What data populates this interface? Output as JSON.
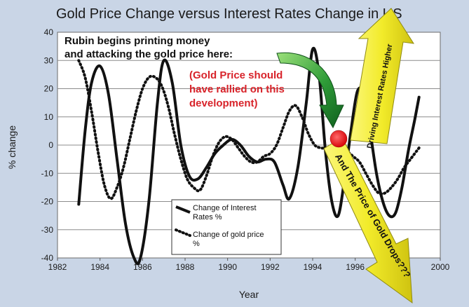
{
  "chart_data": {
    "type": "line",
    "title": "Gold Price Change versus Interest Rates Change in US",
    "xlabel": "Year",
    "ylabel": "% change",
    "xlim": [
      1982,
      2000
    ],
    "ylim": [
      -40,
      40
    ],
    "x_ticks": [
      1982,
      1984,
      1986,
      1988,
      1990,
      1992,
      1994,
      1996,
      1998,
      2000
    ],
    "y_ticks": [
      -40,
      -30,
      -20,
      -10,
      0,
      10,
      20,
      30,
      40
    ],
    "grid": "horizontal",
    "series": [
      {
        "name": "Change of Interest Rates %",
        "style": "solid",
        "color": "#000000",
        "x": [
          1983.0,
          1983.3,
          1983.6,
          1984.0,
          1984.4,
          1984.8,
          1985.2,
          1985.6,
          1985.9,
          1986.3,
          1986.7,
          1987.0,
          1987.4,
          1987.8,
          1988.2,
          1988.6,
          1989.0,
          1989.4,
          1989.8,
          1990.2,
          1990.6,
          1991.0,
          1991.4,
          1991.8,
          1992.2,
          1992.6,
          1992.9,
          1993.3,
          1993.7,
          1994.0,
          1994.3,
          1994.6,
          1994.9,
          1995.2,
          1995.5,
          1995.8,
          1996.1,
          1996.4,
          1996.7,
          1997.0,
          1997.3,
          1997.6,
          1997.9,
          1998.2,
          1998.5,
          1998.8,
          1999.0
        ],
        "values": [
          -21,
          5,
          22,
          28,
          18,
          -5,
          -28,
          -40,
          -40,
          -20,
          15,
          30,
          22,
          0,
          -11,
          -12,
          -8,
          -3,
          0,
          2,
          0,
          -4,
          -6,
          -5,
          -6,
          -14,
          -19,
          -8,
          15,
          34,
          25,
          -2,
          -20,
          -25,
          -12,
          5,
          19,
          18,
          5,
          -10,
          -20,
          -25,
          -24,
          -15,
          -2,
          9,
          17
        ]
      },
      {
        "name": "Change of gold price %",
        "style": "dotted",
        "color": "#000000",
        "x": [
          1983.0,
          1983.3,
          1983.6,
          1983.9,
          1984.2,
          1984.5,
          1984.8,
          1985.1,
          1985.4,
          1985.7,
          1986.0,
          1986.3,
          1986.6,
          1986.9,
          1987.2,
          1987.5,
          1987.8,
          1988.1,
          1988.4,
          1988.7,
          1989.0,
          1989.3,
          1989.6,
          1989.9,
          1990.2,
          1990.5,
          1990.8,
          1991.1,
          1991.4,
          1991.7,
          1992.0,
          1992.3,
          1992.6,
          1992.9,
          1993.2,
          1993.5,
          1993.8,
          1994.1,
          1994.4,
          1994.7,
          1995.0,
          1995.3,
          1995.6,
          1995.9,
          1996.2,
          1996.5,
          1996.8,
          1997.1,
          1997.4,
          1997.7,
          1998.0,
          1998.3,
          1998.6,
          1998.9,
          1999.0
        ],
        "values": [
          30,
          24,
          12,
          -2,
          -14,
          -19,
          -15,
          -8,
          2,
          12,
          20,
          24,
          24,
          21,
          14,
          4,
          -5,
          -12,
          -15,
          -16,
          -11,
          -4,
          1,
          3,
          2,
          -1,
          -4,
          -6,
          -6,
          -4,
          -3,
          0,
          6,
          12,
          14,
          10,
          4,
          0,
          -1,
          -1,
          0,
          0,
          -2,
          -4,
          -6,
          -10,
          -14,
          -17,
          -17,
          -15,
          -12,
          -8,
          -5,
          -2,
          -1
        ]
      }
    ],
    "legend": {
      "position": "bottom-left inside plot",
      "entries": [
        "Change of Interest Rates %",
        "Change of gold price %"
      ]
    },
    "annotations": {
      "top_line1": "Rubin begins printing money",
      "top_line2": "and attacking the gold price here:",
      "red_line1": "(Gold Price should",
      "red_line2": "have rallied on this",
      "red_line3": "development)",
      "up_arrow_text": "Driving Interest Rates Higher",
      "down_arrow_text": "And The Price of Gold Drops???"
    },
    "colors": {
      "background": "#c9d5e6",
      "plot_area": "#ffffff",
      "marker_dot": "#e8191d",
      "yellow_arrow": "#f3ee2c",
      "green_arrow": "#2e9b3a"
    }
  }
}
